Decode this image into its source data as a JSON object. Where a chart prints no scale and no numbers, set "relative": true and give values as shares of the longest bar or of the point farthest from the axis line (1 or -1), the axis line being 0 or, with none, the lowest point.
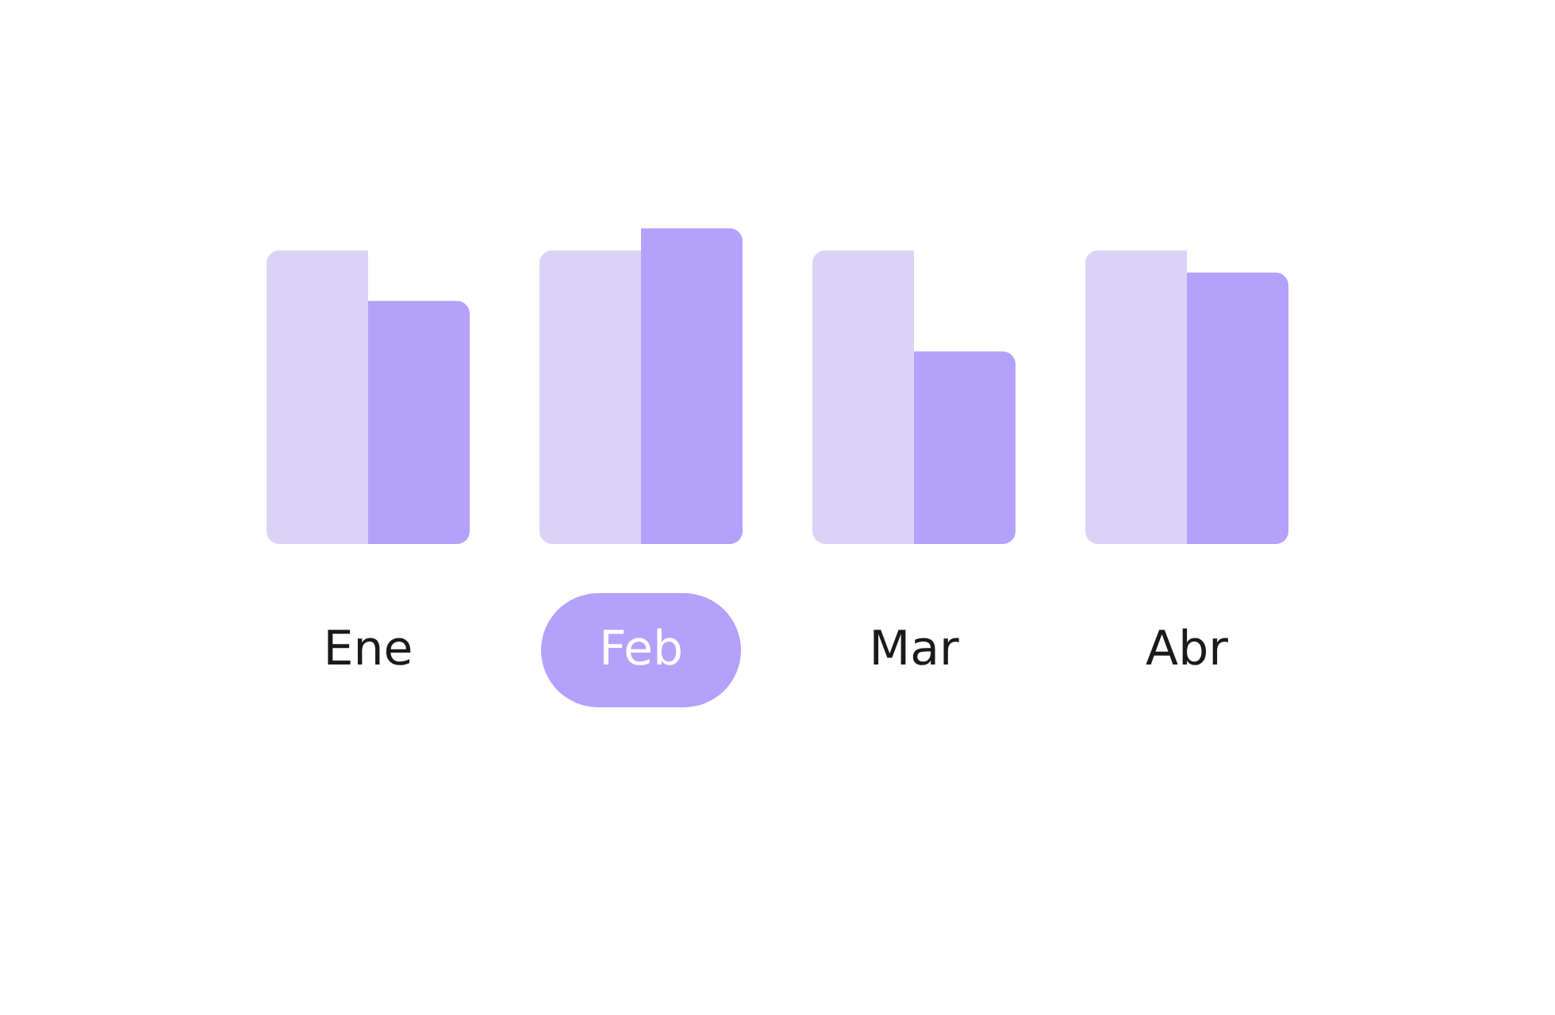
{
  "chart_data": {
    "type": "bar",
    "relative": true,
    "categories": [
      "Ene",
      "Feb",
      "Mar",
      "Abr"
    ],
    "series": [
      {
        "color": "#dbd3f7",
        "values": [
          0.93,
          0.93,
          0.93,
          0.93
        ]
      },
      {
        "color": "#b3a1fb",
        "values": [
          0.77,
          1,
          0.61,
          0.86
        ]
      }
    ],
    "grid": false,
    "legend": false
  }
}
